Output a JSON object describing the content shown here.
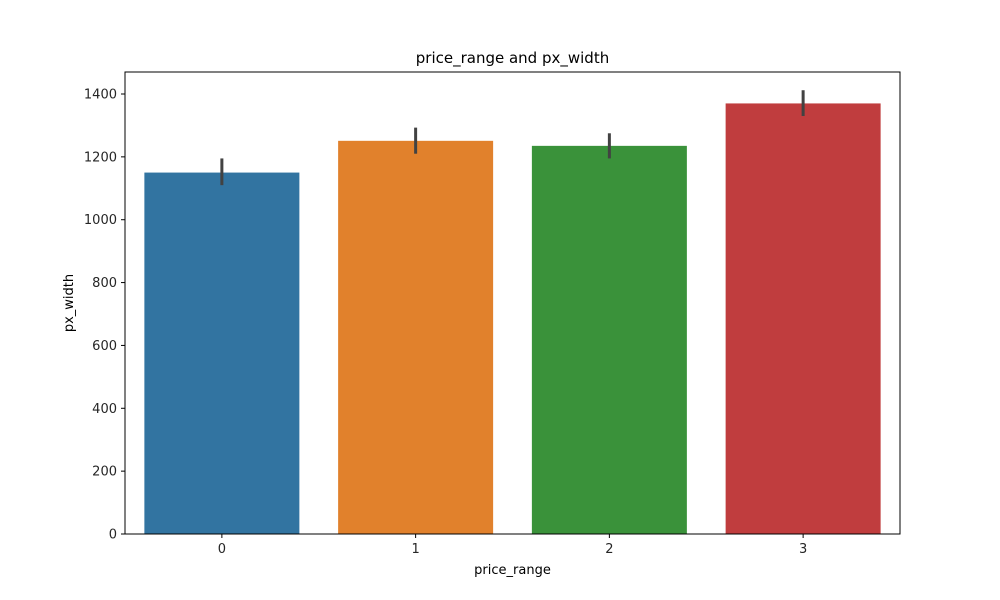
{
  "chart_data": {
    "type": "bar",
    "title": "price_range and px_width",
    "xlabel": "price_range",
    "ylabel": "px_width",
    "categories": [
      "0",
      "1",
      "2",
      "3"
    ],
    "values": [
      1150,
      1251,
      1235,
      1370
    ],
    "error_low": [
      1110,
      1210,
      1195,
      1330
    ],
    "error_high": [
      1195,
      1293,
      1275,
      1412
    ],
    "colors": [
      "#3274a1",
      "#e1812c",
      "#3a923a",
      "#c03d3e"
    ],
    "error_color": "#424242",
    "ylim": [
      0,
      1470
    ],
    "yticks": [
      0,
      200,
      400,
      600,
      800,
      1000,
      1200,
      1400
    ],
    "grid": false,
    "legend": "none"
  }
}
